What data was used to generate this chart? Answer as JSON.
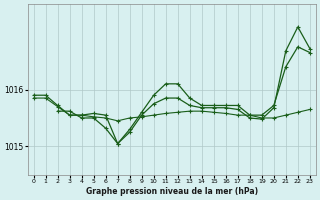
{
  "background_color": "#d8f0f0",
  "grid_color": "#b0c8c8",
  "line_color": "#1a5e1a",
  "xlabel": "Graphe pression niveau de la mer (hPa)",
  "ylabel_ticks": [
    "1015",
    "1016"
  ],
  "ylim": [
    1014.5,
    1017.5
  ],
  "xlim": [
    -0.5,
    23.5
  ],
  "xticks": [
    0,
    1,
    2,
    3,
    4,
    5,
    6,
    7,
    8,
    9,
    10,
    11,
    12,
    13,
    14,
    15,
    16,
    17,
    18,
    19,
    20,
    21,
    22,
    23
  ],
  "yticks": [
    1015,
    1016
  ],
  "series1": [
    1015.85,
    1015.85,
    1015.7,
    1015.55,
    1015.55,
    1015.52,
    1015.5,
    1015.45,
    1015.5,
    1015.52,
    1015.55,
    1015.58,
    1015.6,
    1015.62,
    1015.62,
    1015.6,
    1015.58,
    1015.55,
    1015.55,
    1015.5,
    1015.5,
    1015.55,
    1015.6,
    1015.65
  ],
  "series2_x": [
    0,
    1,
    2,
    3,
    4,
    5,
    6,
    7,
    8,
    9,
    10,
    11,
    12,
    13,
    14,
    15,
    16,
    17,
    18,
    19,
    20,
    21,
    22,
    23
  ],
  "series2": [
    1015.9,
    1015.9,
    1015.72,
    1015.55,
    1015.55,
    1015.58,
    1015.55,
    1015.05,
    1015.3,
    1015.6,
    1015.9,
    1016.1,
    1016.1,
    1015.85,
    1015.72,
    1015.72,
    1015.72,
    1015.72,
    1015.55,
    1015.55,
    1015.72,
    1016.4,
    1016.75,
    1016.65
  ],
  "series3_x": [
    2,
    3,
    4,
    5,
    6,
    7,
    8,
    9,
    10,
    11,
    12,
    13,
    14,
    15,
    16,
    17,
    18,
    19,
    20,
    21,
    22,
    23
  ],
  "series3": [
    1015.62,
    1015.62,
    1015.5,
    1015.5,
    1015.32,
    1015.05,
    1015.25,
    1015.55,
    1015.75,
    1015.85,
    1015.85,
    1015.72,
    1015.68,
    1015.68,
    1015.68,
    1015.65,
    1015.5,
    1015.48,
    1015.68,
    1016.68,
    1017.1,
    1016.72
  ]
}
